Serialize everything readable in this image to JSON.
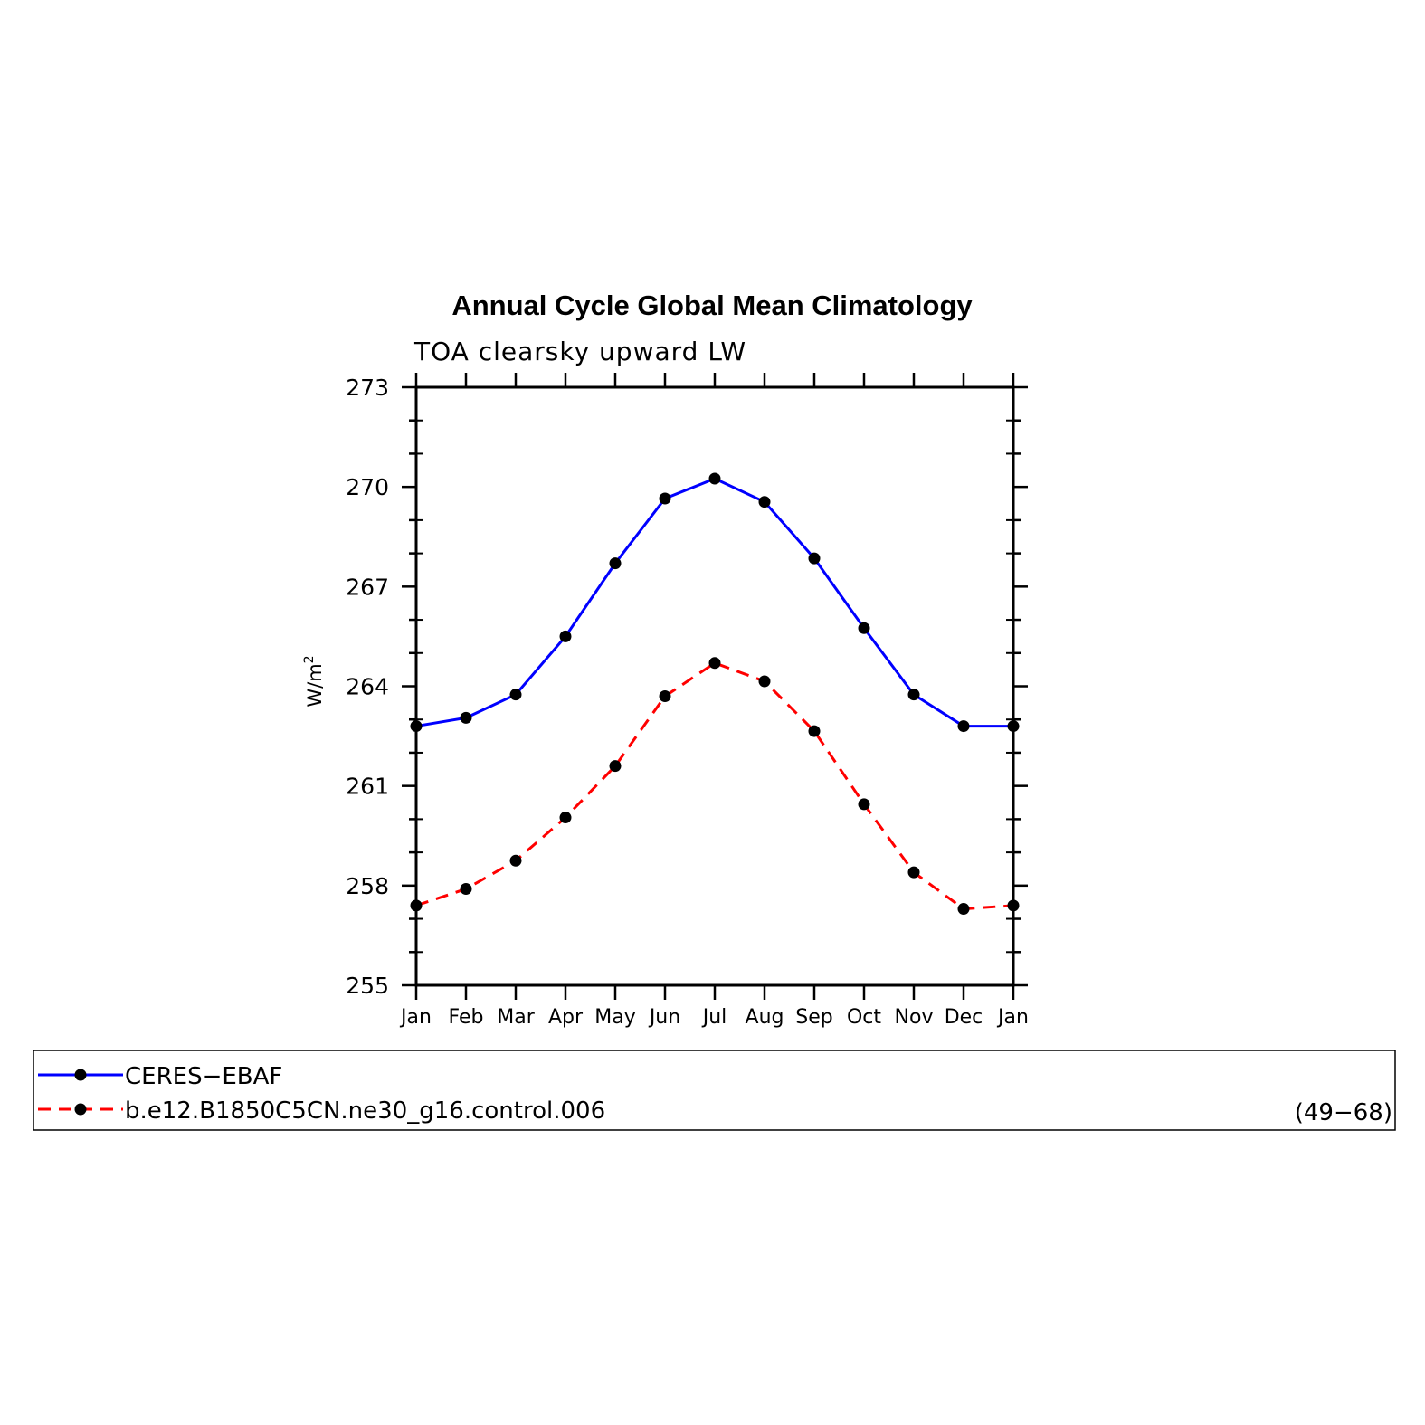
{
  "chart_data": {
    "type": "line",
    "title": "Annual Cycle Global Mean Climatology",
    "subtitle": "TOA clearsky upward LW",
    "ylabel": "W/m",
    "ylabel_sup": "2",
    "ylim": [
      255,
      273
    ],
    "yticks": [
      "255",
      "258",
      "261",
      "264",
      "267",
      "270",
      "273"
    ],
    "categories": [
      "Jan",
      "Feb",
      "Mar",
      "Apr",
      "May",
      "Jun",
      "Jul",
      "Aug",
      "Sep",
      "Oct",
      "Nov",
      "Dec",
      "Jan"
    ],
    "grid": false,
    "legend_position": "bottom",
    "series": [
      {
        "name": "CERES−EBAF",
        "color": "#0000ff",
        "dash": "solid",
        "values": [
          262.8,
          263.05,
          263.75,
          265.5,
          267.7,
          269.65,
          270.25,
          269.55,
          267.85,
          265.75,
          263.75,
          262.8,
          262.8
        ]
      },
      {
        "name": "b.e12.B1850C5CN.ne30_g16.control.006",
        "color": "#ff0000",
        "dash": "dashed",
        "values": [
          257.4,
          257.9,
          258.75,
          260.05,
          261.6,
          263.7,
          264.7,
          264.15,
          262.65,
          260.45,
          258.4,
          257.3,
          257.4
        ]
      }
    ],
    "legend_note": "(49−68)"
  }
}
